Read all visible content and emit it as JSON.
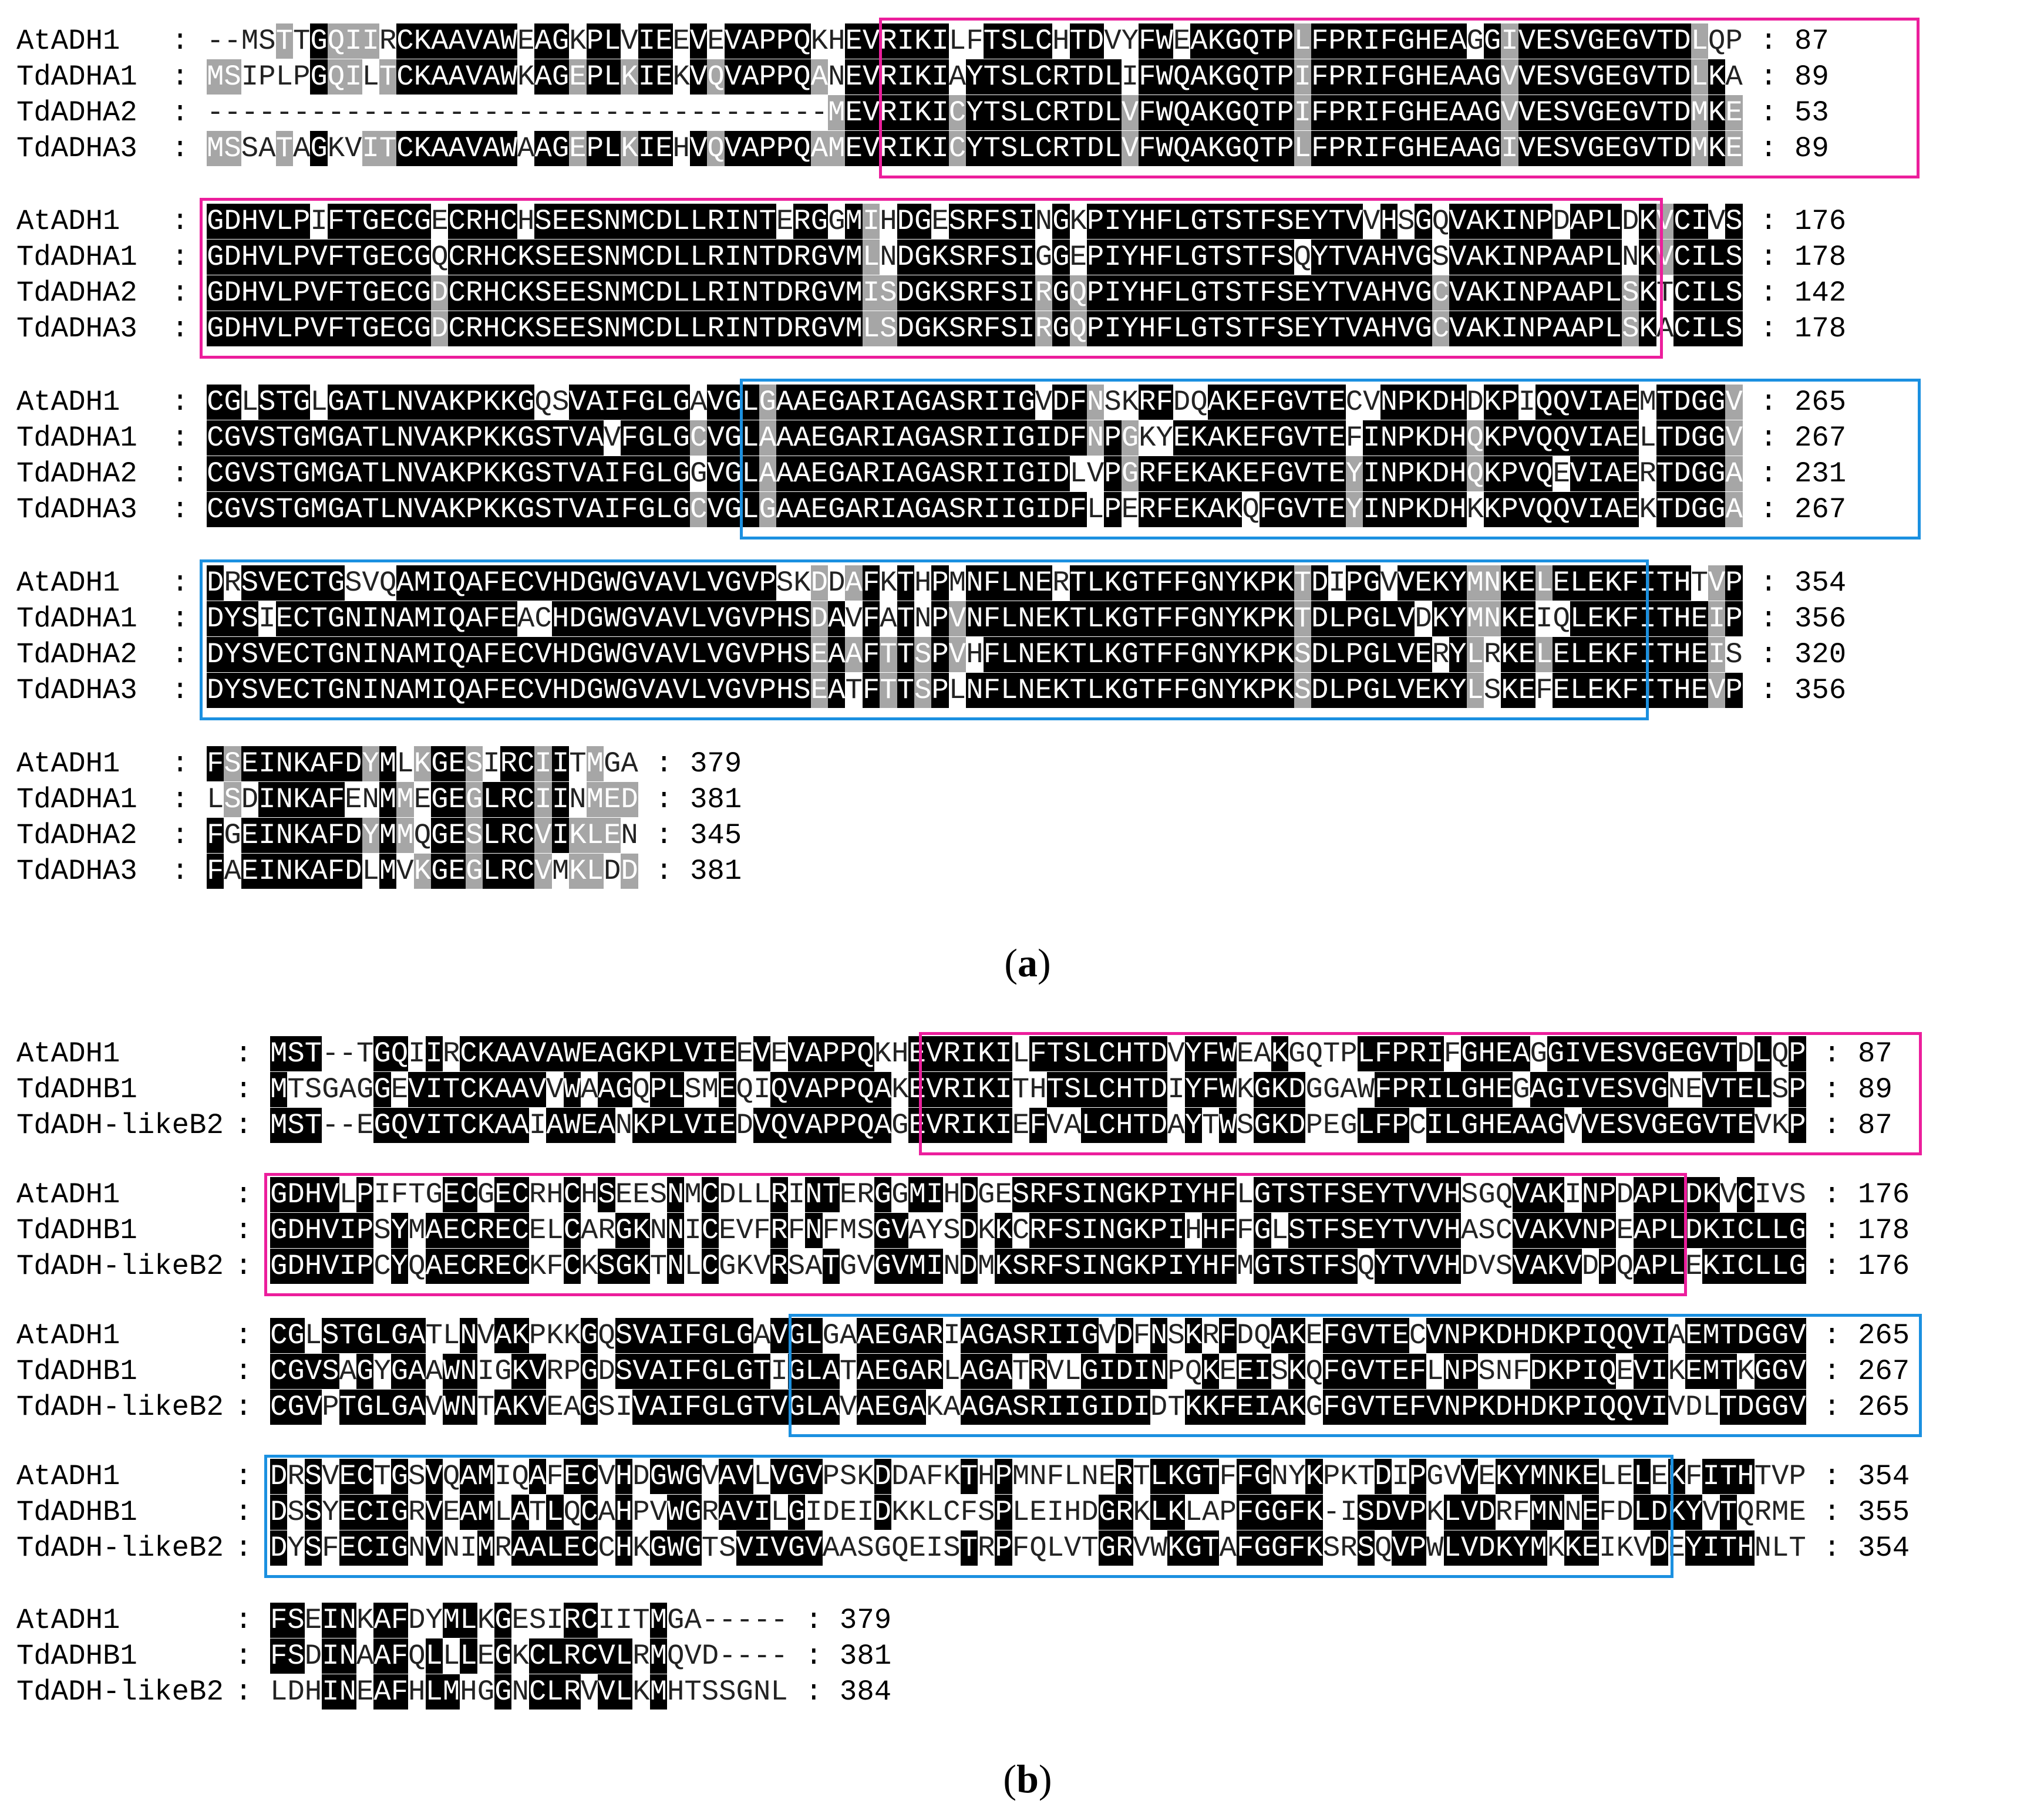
{
  "panels": [
    {
      "id": "a",
      "caption_letter": "a",
      "blocks": [
        {
          "rows": [
            {
              "name": "AtADH1",
              "sep": " : ",
              "seq": "--MSTTGQIIRCKAAVAWEAGKPLVIEEVEVAPPQKHEVRIKILFTSLCHTDVYFWEAKGQTPLFPRIFGHEAGGIVESVGEGVTDLQP",
              "end": ": 87"
            },
            {
              "name": "TdADHA1",
              "sep": " : ",
              "seq": "MSIPLPGQILTCKAAVAWKAGEPLKIEKVQVAPPQANEVRIKIAYTSLCRTDLIFWQAKGQTPIFPRIFGHEAAGVVESVGEGVTDLKA",
              "end": ": 89"
            },
            {
              "name": "TdADHA2",
              "sep": " : ",
              "seq": "------------------------------------MEVRIKICYTSLCRTDLVFWQAKGQTPIFPRIFGHEAAGVVESVGEGVTDMKE",
              "end": ": 53"
            },
            {
              "name": "TdADHA3",
              "sep": " : ",
              "seq": "MSSATAGKVITCKAAVAWAAGEPLKIEHVQVAPPQAMEVRIKICYTSLCRTDLVFWQAKGQTPLFPRIFGHEAAGIVESVGEGVTDMKE",
              "end": ": 89"
            }
          ]
        },
        {
          "rows": [
            {
              "name": "AtADH1",
              "sep": " : ",
              "seq": "GDHVLPIFTGECGECRHCHSEESNMCDLLRINTERGGMIHDGESRFSINGKPIYHFLGTSTFSEYTVVHSGQVAKINPDAPLDKVCIVS",
              "end": ": 176"
            },
            {
              "name": "TdADHA1",
              "sep": " : ",
              "seq": "GDHVLPVFTGECGQCRHCKSEESNMCDLLRINTDRGVMLNDGKSRFSIGGEPIYHFLGTSTFSQYTVAHVGSVAKINPAAPLNKVCILS",
              "end": ": 178"
            },
            {
              "name": "TdADHA2",
              "sep": " : ",
              "seq": "GDHVLPVFTGECGDCRHCKSEESNMCDLLRINTDRGVMISDGKSRFSIRGQPIYHFLGTSTFSEYTVAHVGCVAKINPAAPLSKTCILS",
              "end": ": 142"
            },
            {
              "name": "TdADHA3",
              "sep": " : ",
              "seq": "GDHVLPVFTGECGDCRHCKSEESNMCDLLRINTDRGVMLSDGKSRFSIRGQPIYHFLGTSTFSEYTVAHVGCVAKINPAAPLSKACILS",
              "end": ": 178"
            }
          ]
        },
        {
          "rows": [
            {
              "name": "AtADH1",
              "sep": " : ",
              "seq": "CGLSTGLGATLNVAKPKKGQSVAIFGLGAVGLGAAEGARIAGASRIIGVDFNSKRFDQAKEFGVTECVNPKDHDKPIQQVIAEMTDGGV",
              "end": ": 265"
            },
            {
              "name": "TdADHA1",
              "sep": " : ",
              "seq": "CGVSTGMGATLNVAKPKKGSTVAVFGLGCVGLAAAEGARIAGASRIIGIDFNPGKYEKAKEFGVTEFINPKDHQKPVQQVIAELTDGGV",
              "end": ": 267"
            },
            {
              "name": "TdADHA2",
              "sep": " : ",
              "seq": "CGVSTGMGATLNVAKPKKGSTVAIFGLGGVGLAAAEGARIAGASRIIGIDLVPGRFEKAKEFGVTEYINPKDHQKPVQEVIAERTDGGA",
              "end": ": 231"
            },
            {
              "name": "TdADHA3",
              "sep": " : ",
              "seq": "CGVSTGMGATLNVAKPKKGSTVAIFGLGCVGLGAAEGARIAGASRIIGIDFLPERFEKAKQFGVTEYINPKDHKKPVQQVIAEKTDGGA",
              "end": ": 267"
            }
          ]
        },
        {
          "rows": [
            {
              "name": "AtADH1",
              "sep": " : ",
              "seq": "DRSVECTGSVQAMIQAFECVHDGWGVAVLVGVPSKDDAFKTHPMNFLNERTLKGTFFGNYKPKTDIPGVVEKYMNKELELEKFITHTVP",
              "end": ": 354"
            },
            {
              "name": "TdADHA1",
              "sep": " : ",
              "seq": "DYSIECTGNINAMIQAFEACHDGWGVAVLVGVPHSDAVFATNPVNFLNEKTLKGTFFGNYKPKTDLPGLVDKYMNKEIQLEKFITHEIP",
              "end": ": 356"
            },
            {
              "name": "TdADHA2",
              "sep": " : ",
              "seq": "DYSVECTGNINAMIQAFECVHDGWGVAVLVGVPHSEAAFTTSPVHFLNEKTLKGTFFGNYKPKSDLPGLVERYLRKELELEKFITHEIS",
              "end": ": 320"
            },
            {
              "name": "TdADHA3",
              "sep": " : ",
              "seq": "DYSVECTGNINAMIQAFECVHDGWGVAVLVGVPHSEATFTTSPLNFLNEKTLKGTFFGNYKPKSDLPGLVEKYLSKEFELEKFITHEVP",
              "end": ": 356"
            }
          ]
        },
        {
          "rows": [
            {
              "name": "AtADH1",
              "sep": " : ",
              "seq": "FSEINKAFDYMLKGESIRCIITMGA",
              "end": ": 379"
            },
            {
              "name": "TdADHA1",
              "sep": " : ",
              "seq": "LSDINKAFENMMEGEGLRCIINMED",
              "end": ": 381"
            },
            {
              "name": "TdADHA2",
              "sep": " : ",
              "seq": "FGEINKAFDYMMQGESLRCVIKLEN",
              "end": ": 345"
            },
            {
              "name": "TdADHA3",
              "sep": " : ",
              "seq": "FAEINKAFDLMVKGEGLRCVMKLDD",
              "end": ": 381"
            }
          ]
        }
      ]
    },
    {
      "id": "b",
      "caption_letter": "b",
      "blocks": [
        {
          "rows": [
            {
              "name": "AtADH1",
              "sep": "       : ",
              "seq": "MST--TGQIIRCKAAVAWEAGKPLVIEEVEVAPPQKHEVRIKILFTSLCHTDVYFWEAKGQTPLFPRIFGHEAGGIVESVGEGVTDLQP",
              "end": ": 87"
            },
            {
              "name": "TdADHB1",
              "sep": "      : ",
              "seq": "MTSGAGGEVITCKAAVVWAAGQPLSMEQIQVAPPQAKEVRIKITHTSLCHTDIYFWKGKDGGAWFPRILGHEGAGIVESVGNEVTELSP",
              "end": ": 89"
            },
            {
              "name": "TdADH-likeB2",
              "sep": ": ",
              "seq": "MST--EGQVITCKAAIAWEANKPLVIEDVQVAPPQAGEVRIKIEFVALCHTDAYTWSGKDPEGLFPCILGHEAAGVVESVGEGVTEVKP",
              "end": ": 87"
            }
          ]
        },
        {
          "rows": [
            {
              "name": "AtADH1",
              "sep": "       : ",
              "seq": "GDHVLPIFTGECGECRHCHSEESNMCDLLRINTERGGMIHDGESRFSINGKPIYHFLGTSTFSEYTVVHSGQVAKINPDAPLDKVCIVS",
              "end": ": 176"
            },
            {
              "name": "TdADHB1",
              "sep": "      : ",
              "seq": "GDHVIPSYMAECRECELCARGKNNICEVFRFNFMSGVAYSDKKCRFSINGKPIHHFFGLSTFSEYTVVHASCVAKVNPEAPLDKICLLG",
              "end": ": 178"
            },
            {
              "name": "TdADH-likeB2",
              "sep": ": ",
              "seq": "GDHVIPCYQAECRECKFCKSGKTNLCGKVRSATGVGVMINDMKSRFSINGKPIYHFMGTSTFSQYTVVHDVSVAKVDPQAPLEKICLLG",
              "end": ": 176"
            }
          ]
        },
        {
          "rows": [
            {
              "name": "AtADH1",
              "sep": "       : ",
              "seq": "CGLSTGLGATLNVAKPKKGQSVAIFGLGAVGLGAAEGARIAGASRIIGVDFNSKRFDQAKEFGVTECVNPKDHDKPIQQVIAEMTDGGV",
              "end": ": 265"
            },
            {
              "name": "TdADHB1",
              "sep": "      : ",
              "seq": "CGVSAGYGAAWNIGKVRPGDSVAIFGLGTIGLATAEGARLAGATRVLGIDINPQKEEISKQFGVTEFLNPSNFDKPIQEVIKEMTKGGV",
              "end": ": 267"
            },
            {
              "name": "TdADH-likeB2",
              "sep": ": ",
              "seq": "CGVPTGLGAVWNTAKVEAGSIVAIFGLGTVGLAVAEGAKAAGASRIIGIDIDTKKFEIAKGFGVTEFVNPKDHDKPIQQVIVDLTDGGV",
              "end": ": 265"
            }
          ]
        },
        {
          "rows": [
            {
              "name": "AtADH1",
              "sep": "       : ",
              "seq": "DRSVECTGSVQAMIQAFECVHDGWGVAVLVGVPSKDDAFKTHPMNFLNERTLKGTFFGNYKPKTDIPGVVEKYMNKELELEKFITHTVP",
              "end": ": 354"
            },
            {
              "name": "TdADHB1",
              "sep": "      : ",
              "seq": "DSSYECIGRVEAMLATLQCAHPVWGRAVILGIDEIDKKLCFSPLEIHDGRKLKLAPFGGFK-ISDVPKLVDRFMNNEFDLDKYVTQRME",
              "end": ": 355"
            },
            {
              "name": "TdADH-likeB2",
              "sep": ": ",
              "seq": "DYSFECIGNVNIMRAALECCHKGWGTSVIVGVAASGQEISTRPFQLVTGRVWKGTAFGGFKSRSQVPWLVDKYMKKEIKVDEYITHNLT",
              "end": ": 354"
            }
          ]
        },
        {
          "rows": [
            {
              "name": "AtADH1",
              "sep": "       : ",
              "seq": "FSEINKAFDYMLKGESIRCIITMGA-----",
              "end": ": 379"
            },
            {
              "name": "TdADHB1",
              "sep": "      : ",
              "seq": "FSDINAAFQLLLEGKCLRCVLRMQVD----",
              "end": ": 381"
            },
            {
              "name": "TdADH-likeB2",
              "sep": ": ",
              "seq": "LDHINEAFHLMHGGNCLRVVLKMHTSSGNL",
              "end": ": 384"
            }
          ]
        }
      ]
    }
  ],
  "colors": {
    "identical": "#000000",
    "similar": "#a6a6a6",
    "pink_box": "#ec1e9c",
    "blue_box": "#1b90e0"
  }
}
